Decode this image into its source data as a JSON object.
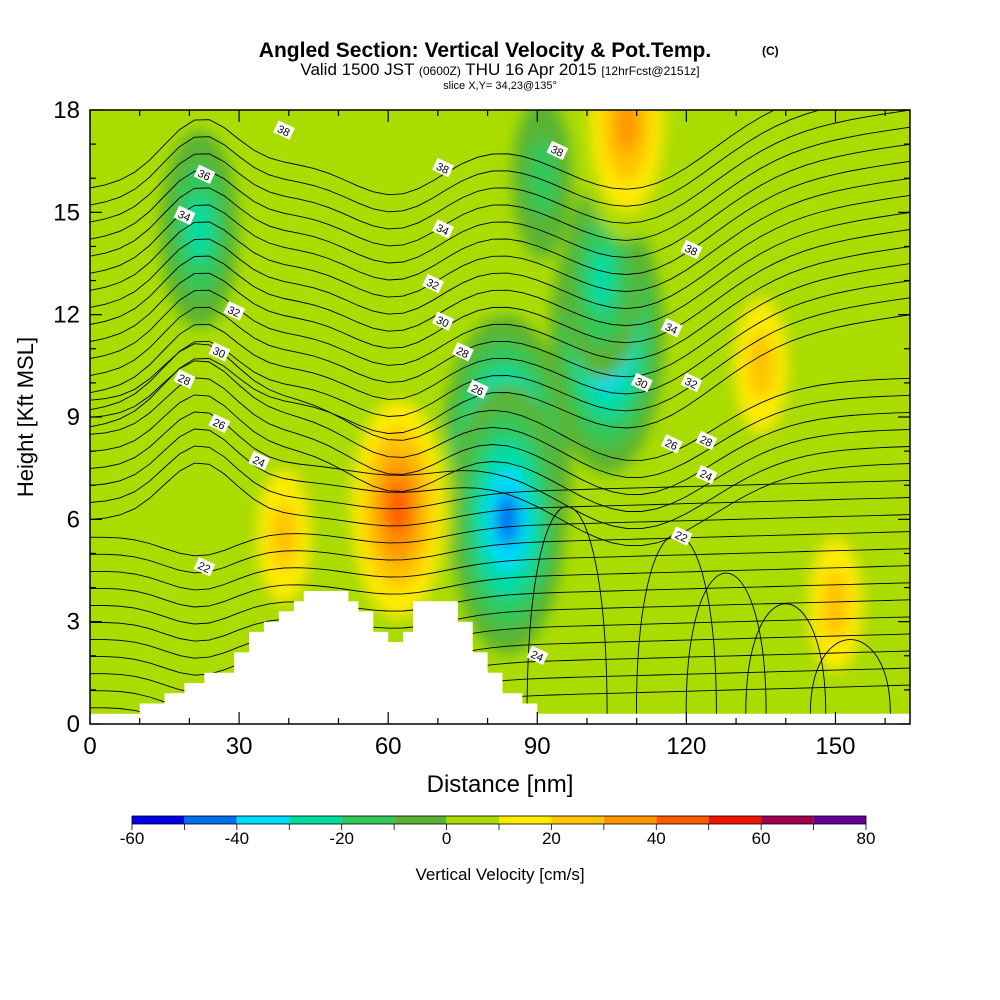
{
  "chart_data": {
    "type": "heatmap",
    "title": "Angled Section: Vertical Velocity & Pot.Temp.",
    "title_suffix": "(C)",
    "subtitle_main": "Valid 1500 JST",
    "subtitle_z": "(0600Z)",
    "subtitle_date": "THU 16 Apr 2015",
    "subtitle_fcst": "[12hrFcst@2151z]",
    "slice_label": "slice X,Y= 34,23@135°",
    "xlabel": "Distance [nm]",
    "ylabel": "Height [Kft MSL]",
    "xlim": [
      0,
      165
    ],
    "ylim": [
      0,
      18
    ],
    "x_ticks": [
      0,
      30,
      60,
      90,
      120,
      150
    ],
    "y_ticks": [
      0,
      3,
      6,
      9,
      12,
      15,
      18
    ],
    "colorbar": {
      "label": "Vertical Velocity [cm/s]",
      "ticks": [
        -60,
        -40,
        -20,
        0,
        20,
        40,
        60,
        80
      ],
      "bins": [
        -60,
        -50,
        -40,
        -30,
        -20,
        -10,
        0,
        10,
        20,
        30,
        40,
        50,
        60,
        70,
        80
      ],
      "colors": [
        "#0000e6",
        "#0070f0",
        "#00dcf8",
        "#00dca0",
        "#33c85a",
        "#5ab432",
        "#aadc00",
        "#ffeb00",
        "#ffc300",
        "#ff9600",
        "#ff5a00",
        "#f01400",
        "#a0004b",
        "#640096"
      ]
    },
    "contour_labels": [
      {
        "value": "38",
        "x": 39,
        "y": 17.4
      },
      {
        "value": "38",
        "x": 71,
        "y": 16.3
      },
      {
        "value": "38",
        "x": 94,
        "y": 16.8
      },
      {
        "value": "38",
        "x": 121,
        "y": 13.9
      },
      {
        "value": "36",
        "x": 23,
        "y": 16.1
      },
      {
        "value": "34",
        "x": 19,
        "y": 14.9
      },
      {
        "value": "34",
        "x": 71,
        "y": 14.5
      },
      {
        "value": "34",
        "x": 117,
        "y": 11.6
      },
      {
        "value": "32",
        "x": 29,
        "y": 12.1
      },
      {
        "value": "32",
        "x": 69,
        "y": 12.9
      },
      {
        "value": "32",
        "x": 121,
        "y": 10.0
      },
      {
        "value": "30",
        "x": 26,
        "y": 10.9
      },
      {
        "value": "30",
        "x": 71,
        "y": 11.8
      },
      {
        "value": "30",
        "x": 111,
        "y": 10.0
      },
      {
        "value": "28",
        "x": 19,
        "y": 10.1
      },
      {
        "value": "28",
        "x": 75,
        "y": 10.9
      },
      {
        "value": "28",
        "x": 124,
        "y": 8.3
      },
      {
        "value": "26",
        "x": 26,
        "y": 8.8
      },
      {
        "value": "26",
        "x": 78,
        "y": 9.8
      },
      {
        "value": "26",
        "x": 117,
        "y": 8.2
      },
      {
        "value": "24",
        "x": 34,
        "y": 7.7
      },
      {
        "value": "24",
        "x": 90,
        "y": 2.0
      },
      {
        "value": "24",
        "x": 124,
        "y": 7.3
      },
      {
        "value": "22",
        "x": 23,
        "y": 4.6
      },
      {
        "value": "22",
        "x": 119,
        "y": 5.5
      }
    ],
    "terrain": [
      [
        0,
        0.3
      ],
      [
        10,
        0.6
      ],
      [
        15,
        0.9
      ],
      [
        19,
        1.2
      ],
      [
        23,
        1.5
      ],
      [
        29,
        2.1
      ],
      [
        32,
        2.7
      ],
      [
        35,
        3.0
      ],
      [
        38,
        3.3
      ],
      [
        41,
        3.6
      ],
      [
        43,
        3.9
      ],
      [
        50,
        3.9
      ],
      [
        52,
        3.6
      ],
      [
        54,
        3.3
      ],
      [
        57,
        2.7
      ],
      [
        60,
        2.4
      ],
      [
        63,
        2.7
      ],
      [
        65,
        3.6
      ],
      [
        71,
        3.6
      ],
      [
        74,
        3.0
      ],
      [
        77,
        2.1
      ],
      [
        80,
        1.5
      ],
      [
        83,
        0.9
      ],
      [
        87,
        0.6
      ],
      [
        90,
        0.3
      ],
      [
        165,
        0.3
      ]
    ],
    "velocity_features": [
      {
        "x": 83.5,
        "y": 7.5,
        "w": -60
      },
      {
        "x": 84,
        "y": 6.0,
        "w": -45
      },
      {
        "x": 104,
        "y": 11.3,
        "w": -48
      },
      {
        "x": 103,
        "y": 13.0,
        "w": -28
      },
      {
        "x": 22,
        "y": 14.5,
        "w": -22
      },
      {
        "x": 91,
        "y": 16.0,
        "w": -20
      },
      {
        "x": 62,
        "y": 6.3,
        "w": 42
      },
      {
        "x": 39,
        "y": 5.5,
        "w": 30
      },
      {
        "x": 108,
        "y": 17.6,
        "w": 32
      },
      {
        "x": 150,
        "y": 3.5,
        "w": 26
      },
      {
        "x": 135,
        "y": 10.5,
        "w": 24
      }
    ]
  }
}
